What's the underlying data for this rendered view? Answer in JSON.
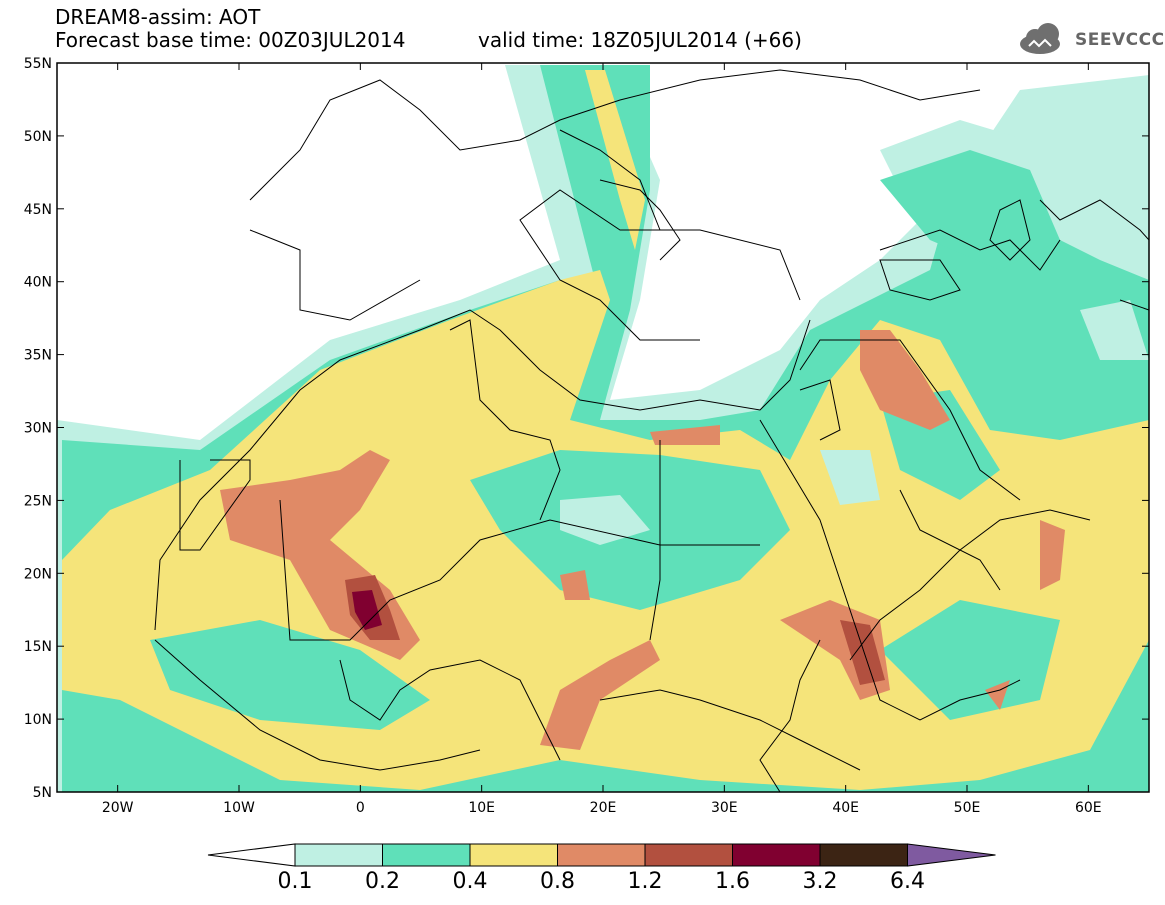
{
  "title": {
    "line1": "DREAM8-assim: AOT",
    "line2": "Forecast base time: 00Z03JUL2014",
    "valid": "valid time: 18Z05JUL2014 (+66)"
  },
  "logo": {
    "text": "SEEVCCC",
    "icon": "cloud-icon"
  },
  "map": {
    "projection": "lat-lon",
    "lon_range": [
      -25,
      65
    ],
    "lat_range": [
      5,
      55
    ],
    "lat_ticks": [
      "5N",
      "10N",
      "15N",
      "20N",
      "25N",
      "30N",
      "35N",
      "40N",
      "45N",
      "50N",
      "55N"
    ],
    "lon_ticks": [
      "20W",
      "10W",
      "0",
      "10E",
      "20E",
      "30E",
      "40E",
      "50E",
      "60E"
    ],
    "variable": "Aerosol Optical Thickness"
  },
  "colorbar": {
    "levels": [
      "0.1",
      "0.2",
      "0.4",
      "0.8",
      "1.2",
      "1.6",
      "3.2",
      "6.4"
    ],
    "colors": [
      "#ffffff",
      "#bff0e3",
      "#5fe0b9",
      "#f5e47a",
      "#e08a66",
      "#b2503f",
      "#800030",
      "#3c2414",
      "#7f5aa0"
    ]
  }
}
